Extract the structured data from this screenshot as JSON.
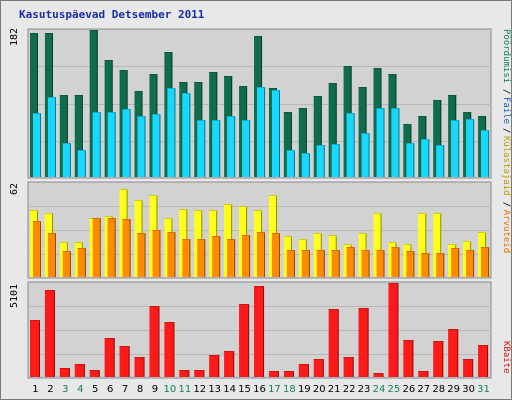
{
  "title": "Kasutuspäevad Detsember 2011",
  "colors": {
    "background": "#e8e8e8",
    "panel": "#d2d2d2",
    "title": "#1a2ca8",
    "visits": "#0f6d4e",
    "pages": "#18d8ff",
    "hits": "#ffff1a",
    "files": "#ff8c00",
    "bytes": "#ff1a1a",
    "weekday": "#000000",
    "weekend": "#138058"
  },
  "days": [
    "1",
    "2",
    "3",
    "4",
    "5",
    "6",
    "7",
    "8",
    "9",
    "10",
    "11",
    "12",
    "13",
    "14",
    "15",
    "16",
    "17",
    "18",
    "19",
    "20",
    "21",
    "22",
    "23",
    "24",
    "25",
    "26",
    "27",
    "28",
    "29",
    "30",
    "31"
  ],
  "weekend_days": [
    "3",
    "4",
    "10",
    "11",
    "17",
    "18",
    "24",
    "25",
    "31"
  ],
  "right_labels": [
    {
      "text": "Pöördumisi",
      "color": "#138058"
    },
    {
      "text": "Faile",
      "color": "#1a5bb8"
    },
    {
      "text": "Külastajaid",
      "color": "#b8a000"
    },
    {
      "text": "Arvuteid",
      "color": "#e07800"
    },
    {
      "text": "KBaite",
      "color": "#d01818"
    }
  ],
  "chart_data": [
    {
      "type": "bar",
      "name": "top",
      "ylim": [
        0,
        182
      ],
      "tick_label": "182",
      "categories": [
        "1",
        "2",
        "3",
        "4",
        "5",
        "6",
        "7",
        "8",
        "9",
        "10",
        "11",
        "12",
        "13",
        "14",
        "15",
        "16",
        "17",
        "18",
        "19",
        "20",
        "21",
        "22",
        "23",
        "24",
        "25",
        "26",
        "27",
        "28",
        "29",
        "30",
        "31"
      ],
      "series": [
        {
          "name": "Pöördumisi",
          "values": [
            178,
            178,
            102,
            102,
            182,
            145,
            133,
            106,
            128,
            155,
            117,
            117,
            130,
            125,
            113,
            175,
            110,
            80,
            85,
            100,
            116,
            138,
            112,
            135,
            128,
            66,
            76,
            95,
            102,
            80,
            76
          ]
        },
        {
          "name": "Faile",
          "values": [
            79,
            99,
            42,
            34,
            81,
            81,
            84,
            75,
            78,
            110,
            104,
            71,
            71,
            76,
            70,
            112,
            108,
            33,
            30,
            40,
            41,
            79,
            54,
            85,
            85,
            42,
            47,
            40,
            71,
            72,
            58
          ]
        }
      ]
    },
    {
      "type": "bar",
      "name": "middle",
      "ylim": [
        0,
        62
      ],
      "tick_label": "62",
      "categories": [
        "1",
        "2",
        "3",
        "4",
        "5",
        "6",
        "7",
        "8",
        "9",
        "10",
        "11",
        "12",
        "13",
        "14",
        "15",
        "16",
        "17",
        "18",
        "19",
        "20",
        "21",
        "22",
        "23",
        "24",
        "25",
        "26",
        "27",
        "28",
        "29",
        "30",
        "31"
      ],
      "series": [
        {
          "name": "Külastajaid",
          "values": [
            44,
            42,
            23,
            23,
            39,
            40,
            58,
            51,
            54,
            39,
            45,
            44,
            44,
            48,
            47,
            44,
            54,
            27,
            25,
            29,
            28,
            22,
            29,
            42,
            23,
            22,
            42,
            42,
            22,
            24,
            30
          ]
        },
        {
          "name": "Arvuteid",
          "values": [
            37,
            29,
            17,
            19,
            39,
            39,
            38,
            29,
            31,
            30,
            25,
            25,
            27,
            25,
            28,
            30,
            29,
            18,
            18,
            18,
            18,
            20,
            18,
            18,
            20,
            17,
            16,
            16,
            19,
            18,
            20
          ]
        }
      ]
    },
    {
      "type": "bar",
      "name": "bottom",
      "ylim": [
        0,
        5101
      ],
      "tick_label": "5101",
      "categories": [
        "1",
        "2",
        "3",
        "4",
        "5",
        "6",
        "7",
        "8",
        "9",
        "10",
        "11",
        "12",
        "13",
        "14",
        "15",
        "16",
        "17",
        "18",
        "19",
        "20",
        "21",
        "22",
        "23",
        "24",
        "25",
        "26",
        "27",
        "28",
        "29",
        "30",
        "31"
      ],
      "series": [
        {
          "name": "KBaite",
          "values": [
            3100,
            4720,
            500,
            700,
            400,
            2100,
            1700,
            1100,
            3830,
            2980,
            400,
            400,
            1180,
            1400,
            3980,
            4950,
            300,
            300,
            700,
            1000,
            3700,
            1100,
            3750,
            190,
            5101,
            2000,
            300,
            1960,
            2620,
            1000,
            1760
          ]
        }
      ]
    }
  ]
}
